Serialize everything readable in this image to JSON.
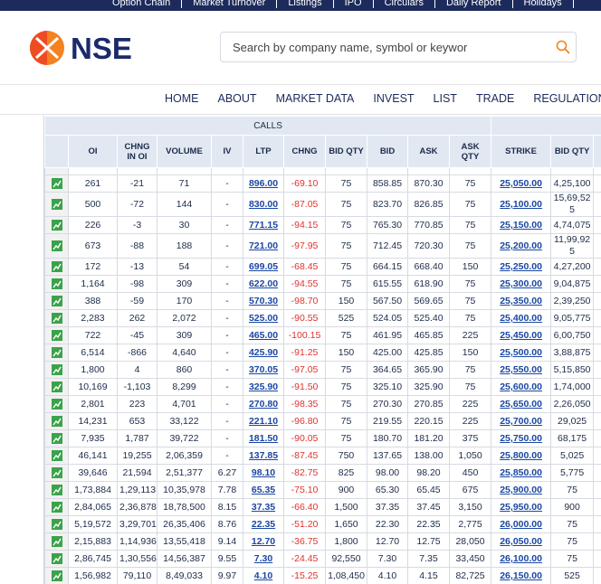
{
  "top_links": [
    "Option Chain",
    "Market Turnover",
    "Listings",
    "IPO",
    "Circulars",
    "Daily Report",
    "Holidays"
  ],
  "logo_text": "NSE",
  "search_placeholder": "Search by company name, symbol or keywor",
  "nav": [
    "HOME",
    "ABOUT",
    "MARKET DATA",
    "INVEST",
    "LIST",
    "TRADE",
    "REGULATION",
    "L"
  ],
  "table": {
    "section": "CALLS",
    "columns": [
      "OI",
      "CHNG IN OI",
      "VOLUME",
      "IV",
      "LTP",
      "CHNG",
      "BID QTY",
      "BID",
      "ASK",
      "ASK QTY",
      "STRIKE",
      "BID QTY"
    ],
    "rows": [
      [
        "261",
        "-21",
        "71",
        "-",
        "896.00",
        "-69.10",
        "75",
        "858.85",
        "870.30",
        "75",
        "25,050.00",
        "4,25,100"
      ],
      [
        "500",
        "-72",
        "144",
        "-",
        "830.00",
        "-87.05",
        "75",
        "823.70",
        "826.85",
        "75",
        "25,100.00",
        "15,69,525"
      ],
      [
        "226",
        "-3",
        "30",
        "-",
        "771.15",
        "-94.15",
        "75",
        "765.30",
        "770.85",
        "75",
        "25,150.00",
        "4,74,075"
      ],
      [
        "673",
        "-88",
        "188",
        "-",
        "721.00",
        "-97.95",
        "75",
        "712.45",
        "720.30",
        "75",
        "25,200.00",
        "11,99,925"
      ],
      [
        "172",
        "-13",
        "54",
        "-",
        "699.05",
        "-68.45",
        "75",
        "664.15",
        "668.40",
        "150",
        "25,250.00",
        "4,27,200"
      ],
      [
        "1,164",
        "-98",
        "309",
        "-",
        "622.00",
        "-94.55",
        "75",
        "615.55",
        "618.90",
        "75",
        "25,300.00",
        "9,04,875"
      ],
      [
        "388",
        "-59",
        "170",
        "-",
        "570.30",
        "-98.70",
        "150",
        "567.50",
        "569.65",
        "75",
        "25,350.00",
        "2,39,250"
      ],
      [
        "2,283",
        "262",
        "2,072",
        "-",
        "525.00",
        "-90.55",
        "525",
        "524.05",
        "525.40",
        "75",
        "25,400.00",
        "9,05,775"
      ],
      [
        "722",
        "-45",
        "309",
        "-",
        "465.00",
        "-100.15",
        "75",
        "461.95",
        "465.85",
        "225",
        "25,450.00",
        "6,00,750"
      ],
      [
        "6,514",
        "-866",
        "4,640",
        "-",
        "425.90",
        "-91.25",
        "150",
        "425.00",
        "425.85",
        "150",
        "25,500.00",
        "3,88,875"
      ],
      [
        "1,800",
        "4",
        "860",
        "-",
        "370.05",
        "-97.05",
        "75",
        "364.65",
        "365.90",
        "75",
        "25,550.00",
        "5,15,850"
      ],
      [
        "10,169",
        "-1,103",
        "8,299",
        "-",
        "325.90",
        "-91.50",
        "75",
        "325.10",
        "325.90",
        "75",
        "25,600.00",
        "1,74,000"
      ],
      [
        "2,801",
        "223",
        "4,701",
        "-",
        "270.80",
        "-98.35",
        "75",
        "270.30",
        "270.85",
        "225",
        "25,650.00",
        "2,26,050"
      ],
      [
        "14,231",
        "653",
        "33,122",
        "-",
        "221.10",
        "-96.80",
        "75",
        "219.55",
        "220.15",
        "225",
        "25,700.00",
        "29,025"
      ],
      [
        "7,935",
        "1,787",
        "39,722",
        "-",
        "181.50",
        "-90.05",
        "75",
        "180.70",
        "181.20",
        "375",
        "25,750.00",
        "68,175"
      ],
      [
        "46,141",
        "19,255",
        "2,06,359",
        "-",
        "137.85",
        "-87.45",
        "750",
        "137.65",
        "138.00",
        "1,050",
        "25,800.00",
        "5,025"
      ],
      [
        "39,646",
        "21,594",
        "2,51,377",
        "6.27",
        "98.10",
        "-82.75",
        "825",
        "98.00",
        "98.20",
        "450",
        "25,850.00",
        "5,775"
      ],
      [
        "1,73,884",
        "1,29,113",
        "10,35,978",
        "7.78",
        "65.35",
        "-75.10",
        "900",
        "65.30",
        "65.45",
        "675",
        "25,900.00",
        "75"
      ],
      [
        "2,84,065",
        "2,36,878",
        "18,78,500",
        "8.15",
        "37.35",
        "-66.40",
        "1,500",
        "37.35",
        "37.45",
        "3,150",
        "25,950.00",
        "900"
      ],
      [
        "5,19,572",
        "3,29,701",
        "26,35,406",
        "8.76",
        "22.35",
        "-51.20",
        "1,650",
        "22.30",
        "22.35",
        "2,775",
        "26,000.00",
        "75"
      ],
      [
        "2,15,883",
        "1,14,936",
        "13,55,418",
        "9.14",
        "12.70",
        "-36.75",
        "1,800",
        "12.70",
        "12.75",
        "28,050",
        "26,050.00",
        "75"
      ],
      [
        "2,86,745",
        "1,30,556",
        "14,56,387",
        "9.55",
        "7.30",
        "-24.45",
        "92,550",
        "7.30",
        "7.35",
        "33,450",
        "26,100.00",
        "75"
      ],
      [
        "1,56,982",
        "79,110",
        "8,49,033",
        "9.97",
        "4.10",
        "-15.25",
        "1,08,450",
        "4.10",
        "4.15",
        "82,725",
        "26,150.00",
        "525"
      ]
    ]
  }
}
